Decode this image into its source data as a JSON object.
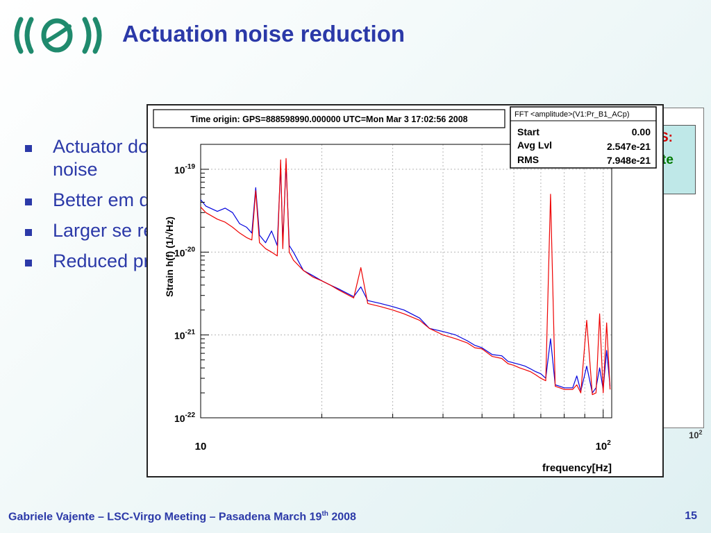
{
  "slide": {
    "title": "Actuation noise reduction",
    "bullets": [
      "Actuator dominated noise",
      "Better em de-empha",
      "Larger se resistor",
      "Reduced present s"
    ],
    "footer": {
      "pre": "Gabriele Vajente – LSC-Virgo Meeting – Pasadena March 19",
      "sup": "th",
      "post": " 2008"
    },
    "page_number": "15",
    "background_figure": {
      "red_text": "S:",
      "green_text": "te",
      "tick_base": "10",
      "tick_exp": "2"
    }
  },
  "colors": {
    "title": "#2b39a8",
    "series_blue": "#0000dd",
    "series_red": "#ee0000"
  },
  "chart_data": {
    "type": "line",
    "header": "Time origin: GPS=888598990.000000 UTC=Mon Mar  3 17:02:56 2008",
    "stats": {
      "title": "FFT <amplitude>(V1:Pr_B1_ACp)",
      "rows": [
        {
          "label": "Start",
          "value": "0.00"
        },
        {
          "label": "Avg Lvl",
          "value": "2.547e-21"
        },
        {
          "label": "RMS",
          "value": "7.948e-21"
        }
      ]
    },
    "xlabel": "frequency[Hz]",
    "ylabel": "Strain h(f) (1/√Hz)",
    "xscale": "log",
    "yscale": "log",
    "xlim": [
      10,
      105
    ],
    "ylim": [
      1e-22,
      2e-19
    ],
    "x_ticks": [
      {
        "value": 10,
        "base": "10",
        "exp": ""
      },
      {
        "value": 100,
        "base": "10",
        "exp": "2"
      }
    ],
    "y_ticks": [
      {
        "value": 1e-19,
        "base": "10",
        "exp": "-19"
      },
      {
        "value": 1e-20,
        "base": "10",
        "exp": "-20"
      },
      {
        "value": 1e-21,
        "base": "10",
        "exp": "-21"
      },
      {
        "value": 1e-22,
        "base": "10",
        "exp": "-22"
      }
    ],
    "grid": true,
    "series": [
      {
        "color": "#0000dd",
        "points": [
          [
            10,
            4.3e-20
          ],
          [
            10.3,
            3.6e-20
          ],
          [
            11,
            3.1e-20
          ],
          [
            11.5,
            3.4e-20
          ],
          [
            12,
            3e-20
          ],
          [
            12.5,
            2.2e-20
          ],
          [
            13,
            2e-20
          ],
          [
            13.4,
            1.7e-20
          ],
          [
            13.7,
            6e-20
          ],
          [
            14.0,
            1.6e-20
          ],
          [
            14.5,
            1.3e-20
          ],
          [
            15.0,
            1.8e-20
          ],
          [
            15.5,
            1.2e-20
          ],
          [
            15.8,
            1.1e-19
          ],
          [
            16.0,
            1.3e-20
          ],
          [
            16.3,
            1.15e-19
          ],
          [
            16.6,
            1.2e-20
          ],
          [
            17,
            1e-20
          ],
          [
            18,
            6e-21
          ],
          [
            19,
            5.2e-21
          ],
          [
            20,
            4.5e-21
          ],
          [
            21,
            4e-21
          ],
          [
            22,
            3.6e-21
          ],
          [
            24,
            2.9e-21
          ],
          [
            25,
            3.8e-21
          ],
          [
            26,
            2.6e-21
          ],
          [
            28,
            2.4e-21
          ],
          [
            30,
            2.2e-21
          ],
          [
            32,
            2e-21
          ],
          [
            35,
            1.6e-21
          ],
          [
            37,
            1.2e-21
          ],
          [
            40,
            1.1e-21
          ],
          [
            43,
            1e-21
          ],
          [
            46,
            8.5e-22
          ],
          [
            48,
            7.5e-22
          ],
          [
            50,
            7e-22
          ],
          [
            53,
            5.8e-22
          ],
          [
            56,
            5.6e-22
          ],
          [
            58,
            4.8e-22
          ],
          [
            60,
            4.6e-22
          ],
          [
            62,
            4.4e-22
          ],
          [
            64,
            4.2e-22
          ],
          [
            66,
            3.9e-22
          ],
          [
            68,
            3.6e-22
          ],
          [
            70,
            3.4e-22
          ],
          [
            72,
            3e-22
          ],
          [
            74,
            9e-22
          ],
          [
            76,
            2.5e-22
          ],
          [
            78,
            2.4e-22
          ],
          [
            80,
            2.3e-22
          ],
          [
            84,
            2.3e-22
          ],
          [
            86,
            3.2e-22
          ],
          [
            88,
            2.1e-22
          ],
          [
            91,
            4.2e-22
          ],
          [
            94,
            2e-22
          ],
          [
            96,
            2.3e-22
          ],
          [
            98,
            4e-22
          ],
          [
            100,
            2.2e-22
          ],
          [
            102,
            6.5e-22
          ],
          [
            104,
            2.4e-22
          ]
        ]
      },
      {
        "color": "#ee0000",
        "points": [
          [
            10,
            3.5e-20
          ],
          [
            10.3,
            3e-20
          ],
          [
            11,
            2.5e-20
          ],
          [
            11.5,
            2.3e-20
          ],
          [
            12,
            2e-20
          ],
          [
            12.5,
            1.7e-20
          ],
          [
            13,
            1.5e-20
          ],
          [
            13.4,
            1.4e-20
          ],
          [
            13.7,
            5.5e-20
          ],
          [
            14.0,
            1.3e-20
          ],
          [
            14.5,
            1.1e-20
          ],
          [
            15.0,
            1e-20
          ],
          [
            15.5,
            9e-21
          ],
          [
            15.8,
            1.3e-19
          ],
          [
            16.0,
            1.1e-20
          ],
          [
            16.3,
            1.35e-19
          ],
          [
            16.6,
            1e-20
          ],
          [
            17,
            8e-21
          ],
          [
            18,
            6e-21
          ],
          [
            19,
            5e-21
          ],
          [
            20,
            4.5e-21
          ],
          [
            21,
            4e-21
          ],
          [
            22,
            3.5e-21
          ],
          [
            24,
            2.8e-21
          ],
          [
            25,
            6.5e-21
          ],
          [
            26,
            2.4e-21
          ],
          [
            28,
            2.2e-21
          ],
          [
            30,
            2e-21
          ],
          [
            32,
            1.8e-21
          ],
          [
            35,
            1.5e-21
          ],
          [
            37,
            1.2e-21
          ],
          [
            40,
            1e-21
          ],
          [
            43,
            9e-22
          ],
          [
            46,
            8e-22
          ],
          [
            48,
            7e-22
          ],
          [
            50,
            6.8e-22
          ],
          [
            53,
            5.5e-22
          ],
          [
            56,
            5.2e-22
          ],
          [
            58,
            4.5e-22
          ],
          [
            60,
            4.3e-22
          ],
          [
            62,
            4e-22
          ],
          [
            64,
            3.8e-22
          ],
          [
            66,
            3.6e-22
          ],
          [
            68,
            3.3e-22
          ],
          [
            70,
            3e-22
          ],
          [
            72,
            2.8e-22
          ],
          [
            74,
            5e-20
          ],
          [
            76,
            2.4e-22
          ],
          [
            78,
            2.3e-22
          ],
          [
            80,
            2.2e-22
          ],
          [
            84,
            2.2e-22
          ],
          [
            86,
            2.5e-22
          ],
          [
            88,
            2e-22
          ],
          [
            91,
            1.5e-21
          ],
          [
            94,
            1.9e-22
          ],
          [
            96,
            2e-22
          ],
          [
            98,
            1.8e-21
          ],
          [
            100,
            2e-22
          ],
          [
            102,
            1.4e-21
          ],
          [
            104,
            2.2e-22
          ]
        ]
      }
    ]
  }
}
